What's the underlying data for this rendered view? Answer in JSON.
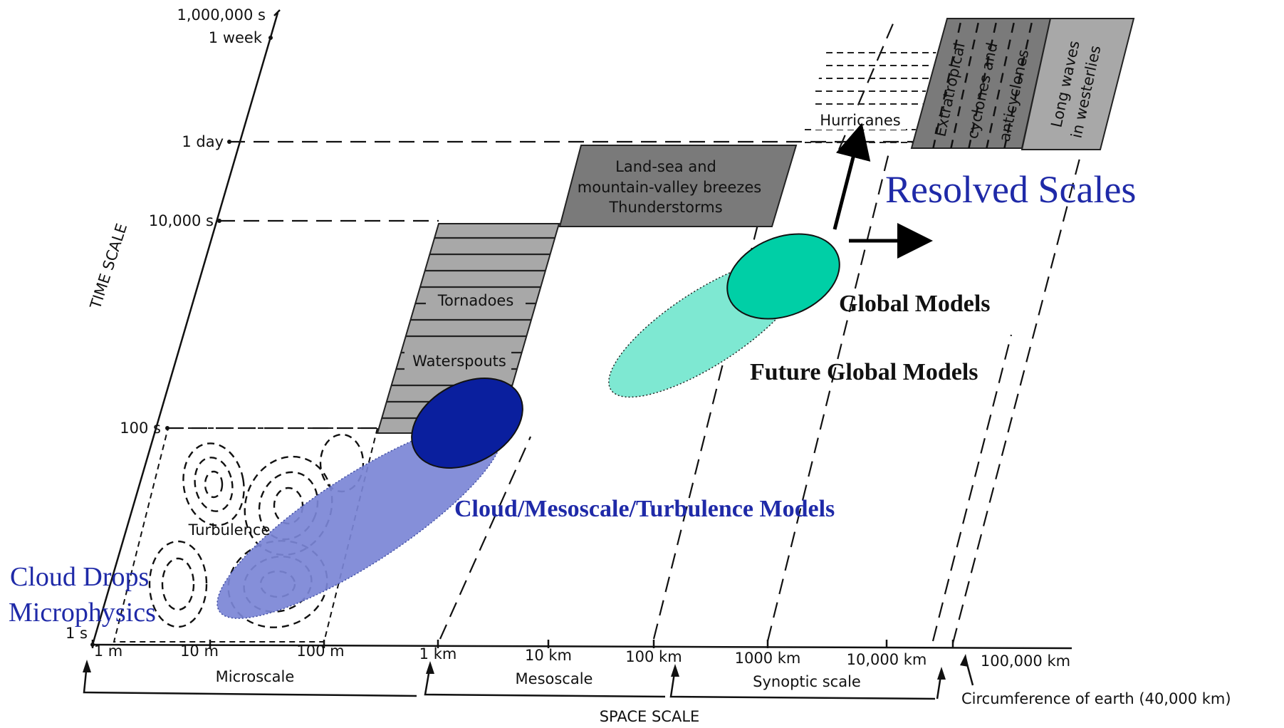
{
  "time_axis": {
    "title": "TIME SCALE",
    "ticks": [
      "1,000,000 s",
      "1 week",
      "1 day",
      "10,000 s",
      "100 s",
      "1 s"
    ]
  },
  "space_axis": {
    "title": "SPACE SCALE",
    "ticks": [
      "1 m",
      "10 m",
      "100 m",
      "1 km",
      "10 km",
      "100 km",
      "1000 km",
      "10,000 km",
      "100,000 km"
    ],
    "scale_ranges": [
      "Microscale",
      "Mesoscale",
      "Synoptic scale"
    ],
    "circumference_note": "Circumference of earth (40,000 km)"
  },
  "phenomena": {
    "turbulence": "Turbulence",
    "tornadoes": "Tornadoes",
    "waterspouts": "Waterspouts",
    "breezes": [
      "Land-sea and",
      "mountain-valley breezes",
      "Thunderstorms"
    ],
    "hurricanes": "Hurricanes",
    "cyclones": [
      "Extratropical",
      "cyclones and",
      "anticyclones"
    ],
    "long_waves": [
      "Long waves",
      "in westerlies"
    ]
  },
  "models": {
    "cloud_drops": [
      "Cloud Drops",
      "Microphysics"
    ],
    "cloud_meso": "Cloud/Mesoscale/Turbulence Models",
    "global": "Global Models",
    "future_global": "Future Global Models",
    "resolved": "Resolved Scales"
  },
  "colors": {
    "dark_blue": "#0a1f9e",
    "blue_band": "#7b86d6",
    "teal": "#00cfa6",
    "teal_light": "#7ee8d2",
    "box_gray": "#7a7a7a",
    "stripe_gray": "#a8a8a8",
    "label_blue": "#1f2aa8"
  }
}
